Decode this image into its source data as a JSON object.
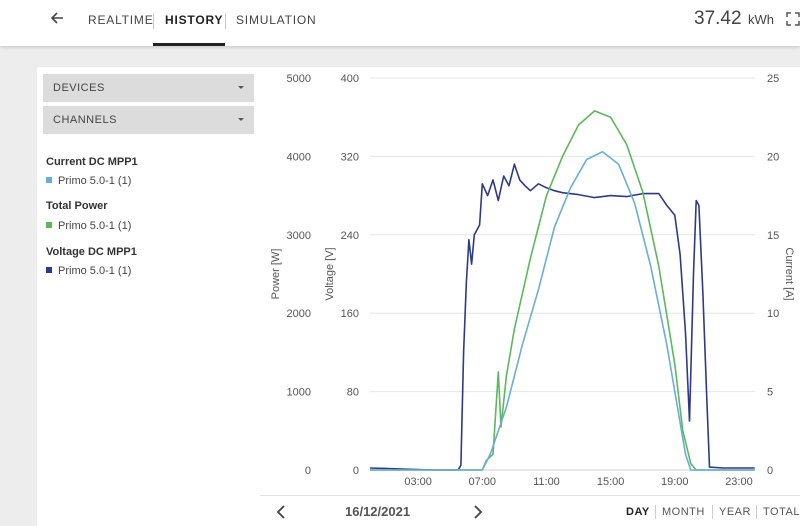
{
  "header": {
    "tabs": [
      {
        "label": "REALTIME",
        "active": false
      },
      {
        "label": "HISTORY",
        "active": true
      },
      {
        "label": "SIMULATION",
        "active": false
      }
    ],
    "energy_value": "37.42",
    "energy_unit": "kWh"
  },
  "sidebar": {
    "devices_label": "DEVICES",
    "channels_label": "CHANNELS",
    "groups": [
      {
        "title": "Current DC MPP1",
        "device": "Primo 5.0-1 (1)",
        "color": "#6aaed6"
      },
      {
        "title": "Total Power",
        "device": "Primo 5.0-1 (1)",
        "color": "#5cb85c"
      },
      {
        "title": "Voltage DC MPP1",
        "device": "Primo 5.0-1 (1)",
        "color": "#2e3a87"
      }
    ]
  },
  "chart_data": {
    "type": "line",
    "x_ticks": [
      "03:00",
      "07:00",
      "11:00",
      "15:00",
      "19:00",
      "23:00"
    ],
    "xlim": [
      "00:00",
      "24:00"
    ],
    "axes": {
      "power": {
        "label": "Power [W]",
        "ticks": [
          "5000",
          "4000",
          "3000",
          "2000",
          "1000",
          "0"
        ],
        "ylim": [
          0,
          5000
        ]
      },
      "voltage": {
        "label": "Voltage [V]",
        "ticks": [
          "400",
          "320",
          "240",
          "160",
          "80",
          "0"
        ],
        "ylim": [
          0,
          400
        ]
      },
      "current": {
        "label": "Current [A]",
        "ticks": [
          "25",
          "20",
          "15",
          "10",
          "5",
          "0"
        ],
        "ylim": [
          0,
          25
        ]
      }
    },
    "grid": true,
    "series": [
      {
        "name": "Voltage DC MPP1",
        "axis": "voltage",
        "color": "#2e3a87",
        "points": [
          [
            "00:00",
            2
          ],
          [
            "02:00",
            1
          ],
          [
            "04:00",
            0
          ],
          [
            "05:30",
            0
          ],
          [
            "05:40",
            5
          ],
          [
            "05:50",
            120
          ],
          [
            "06:00",
            190
          ],
          [
            "06:10",
            235
          ],
          [
            "06:20",
            210
          ],
          [
            "06:30",
            240
          ],
          [
            "06:50",
            250
          ],
          [
            "07:00",
            292
          ],
          [
            "07:20",
            280
          ],
          [
            "07:40",
            296
          ],
          [
            "08:00",
            275
          ],
          [
            "08:20",
            300
          ],
          [
            "08:40",
            290
          ],
          [
            "09:00",
            312
          ],
          [
            "09:20",
            296
          ],
          [
            "09:40",
            290
          ],
          [
            "10:00",
            285
          ],
          [
            "10:30",
            292
          ],
          [
            "11:00",
            288
          ],
          [
            "11:30",
            285
          ],
          [
            "12:00",
            283
          ],
          [
            "13:00",
            281
          ],
          [
            "14:00",
            278
          ],
          [
            "15:00",
            280
          ],
          [
            "16:00",
            279
          ],
          [
            "17:00",
            282
          ],
          [
            "18:00",
            282
          ],
          [
            "18:30",
            270
          ],
          [
            "19:00",
            260
          ],
          [
            "19:20",
            220
          ],
          [
            "19:40",
            140
          ],
          [
            "19:55",
            50
          ],
          [
            "20:10",
            200
          ],
          [
            "20:20",
            275
          ],
          [
            "20:30",
            270
          ],
          [
            "20:45",
            180
          ],
          [
            "21:00",
            70
          ],
          [
            "21:10",
            3
          ],
          [
            "22:00",
            2
          ],
          [
            "23:59",
            2
          ]
        ]
      },
      {
        "name": "Total Power",
        "axis": "power",
        "color": "#5cb85c",
        "points": [
          [
            "00:00",
            0
          ],
          [
            "07:00",
            0
          ],
          [
            "07:15",
            120
          ],
          [
            "07:40",
            200
          ],
          [
            "08:00",
            1250
          ],
          [
            "08:10",
            550
          ],
          [
            "08:30",
            1200
          ],
          [
            "09:00",
            1800
          ],
          [
            "09:30",
            2250
          ],
          [
            "10:00",
            2700
          ],
          [
            "10:30",
            3100
          ],
          [
            "11:00",
            3500
          ],
          [
            "12:00",
            4000
          ],
          [
            "13:00",
            4400
          ],
          [
            "14:00",
            4580
          ],
          [
            "15:00",
            4500
          ],
          [
            "16:00",
            4150
          ],
          [
            "17:00",
            3550
          ],
          [
            "18:00",
            2600
          ],
          [
            "19:00",
            1350
          ],
          [
            "19:30",
            500
          ],
          [
            "20:00",
            80
          ],
          [
            "20:20",
            0
          ],
          [
            "23:59",
            0
          ]
        ]
      },
      {
        "name": "Current DC MPP1",
        "axis": "current",
        "color": "#6aaed6",
        "points": [
          [
            "00:00",
            0
          ],
          [
            "07:00",
            0
          ],
          [
            "07:30",
            1
          ],
          [
            "08:30",
            4
          ],
          [
            "09:30",
            8
          ],
          [
            "10:30",
            11.5
          ],
          [
            "11:30",
            15.5
          ],
          [
            "12:30",
            18
          ],
          [
            "13:30",
            19.8
          ],
          [
            "14:30",
            20.3
          ],
          [
            "15:30",
            19.5
          ],
          [
            "16:30",
            17
          ],
          [
            "17:30",
            13
          ],
          [
            "18:30",
            8
          ],
          [
            "19:00",
            5
          ],
          [
            "19:40",
            1
          ],
          [
            "20:00",
            0
          ],
          [
            "23:59",
            0
          ]
        ]
      }
    ]
  },
  "footer": {
    "date": "16/12/2021",
    "periods": [
      {
        "label": "DAY",
        "active": true
      },
      {
        "label": "MONTH",
        "active": false
      },
      {
        "label": "YEAR",
        "active": false
      },
      {
        "label": "TOTAL",
        "active": false
      }
    ]
  }
}
